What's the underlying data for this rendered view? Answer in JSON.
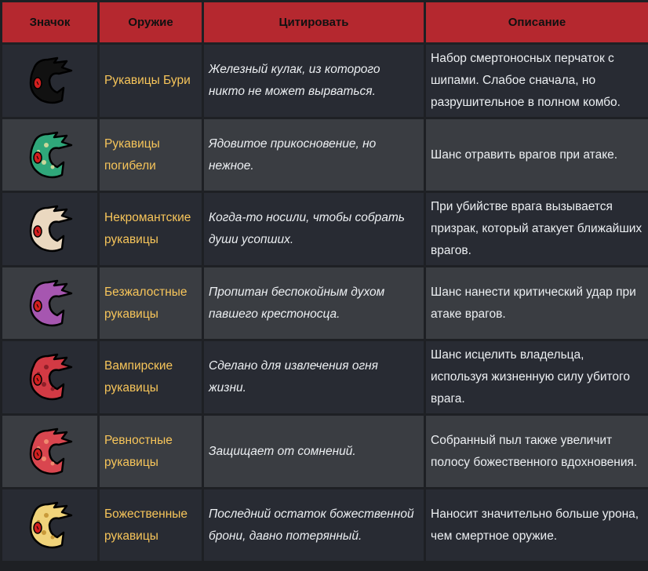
{
  "headers": {
    "icon": "Значок",
    "weapon": "Оружие",
    "quote": "Цитировать",
    "description": "Описание"
  },
  "rows": [
    {
      "icon": "storm-gauntlets-icon",
      "color": "#111111",
      "spots": "#111111",
      "weapon": "Рукавицы Бури",
      "quote": "Железный кулак, из которого никто не может вырваться.",
      "description": "Набор смертоносных перчаток с шипами. Слабое сначала, но разрушительное в полном комбо."
    },
    {
      "icon": "doom-gauntlets-icon",
      "color": "#2fa77a",
      "spots": "#c9d79a",
      "weapon": "Рукавицы погибели",
      "quote": "Ядовитое прикосновение, но нежное.",
      "description": "Шанс отравить врагов при атаке."
    },
    {
      "icon": "necromancer-gauntlets-icon",
      "color": "#ead8c0",
      "spots": "#ead8c0",
      "weapon": "Некромантские рукавицы",
      "quote": "Когда-то носили, чтобы собрать души усопших.",
      "description": "При убийстве врага вызывается призрак, который атакует ближайших врагов."
    },
    {
      "icon": "ruthless-gauntlets-icon",
      "color": "#a656b0",
      "spots": "#a656b0",
      "weapon": "Безжалостные рукавицы",
      "quote": "Пропитан беспокойным духом павшего крестоносца.",
      "description": "Шанс нанести критический удар при атаке врагов."
    },
    {
      "icon": "vampire-gauntlets-icon",
      "color": "#d33a44",
      "spots": "#8e1f28",
      "weapon": "Вампирские рукавицы",
      "quote": "Сделано для извлечения огня жизни.",
      "description": "Шанс исцелить владельца, используя жизненную силу убитого врага."
    },
    {
      "icon": "zealous-gauntlets-icon",
      "color": "#d9464f",
      "spots": "#f08a70",
      "weapon": "Ревностные рукавицы",
      "quote": "Защищает от сомнений.",
      "description": "Собранный пыл также увеличит полосу божественного вдохновения."
    },
    {
      "icon": "divine-gauntlets-icon",
      "color": "#f0d37a",
      "spots": "#c89a3a",
      "weapon": "Божественные рукавицы",
      "quote": "Последний остаток божественной брони, давно потерянный.",
      "description": "Наносит значительно больше урона, чем смертное оружие."
    }
  ]
}
